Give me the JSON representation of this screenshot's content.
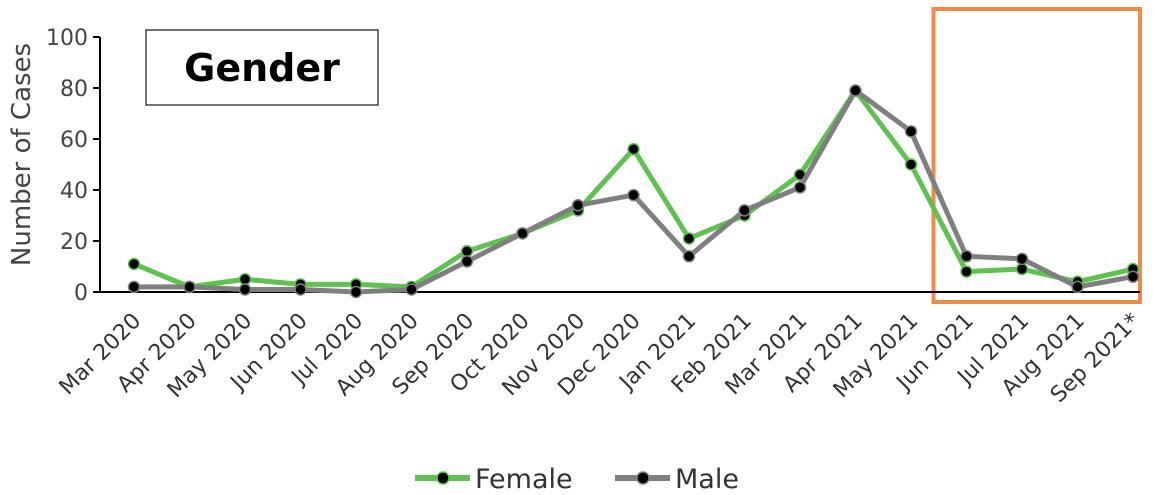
{
  "chart_data": {
    "type": "line",
    "title": "Gender",
    "ylabel": "Number of Cases",
    "xlabel": "",
    "ylim": [
      0,
      100
    ],
    "yticks": [
      "0",
      "20",
      "40",
      "60",
      "80",
      "100"
    ],
    "categories": [
      "Mar 2020",
      "Apr 2020",
      "May 2020",
      "Jun 2020",
      "Jul 2020",
      "Aug 2020",
      "Sep 2020",
      "Oct 2020",
      "Nov 2020",
      "Dec 2020",
      "Jan 2021",
      "Feb 2021",
      "Mar 2021",
      "Apr 2021",
      "May 2021",
      "Jun 2021",
      "Jul 2021",
      "Aug 2021",
      "Sep 2021*"
    ],
    "series": [
      {
        "name": "Female",
        "color": "#5ec24f",
        "values": [
          11,
          2,
          5,
          3,
          3,
          2,
          16,
          23,
          32,
          56,
          21,
          30,
          46,
          79,
          50,
          8,
          9,
          4,
          9
        ]
      },
      {
        "name": "Male",
        "color": "#7f7f7f",
        "values": [
          2,
          2,
          1,
          1,
          0,
          1,
          12,
          23,
          34,
          38,
          14,
          32,
          41,
          79,
          63,
          14,
          13,
          2,
          6
        ]
      }
    ],
    "highlight": {
      "from_category": "Jun 2021",
      "to_category": "Sep 2021*",
      "color": "#ef8b4a"
    },
    "legend": "bottom",
    "grid": false
  }
}
